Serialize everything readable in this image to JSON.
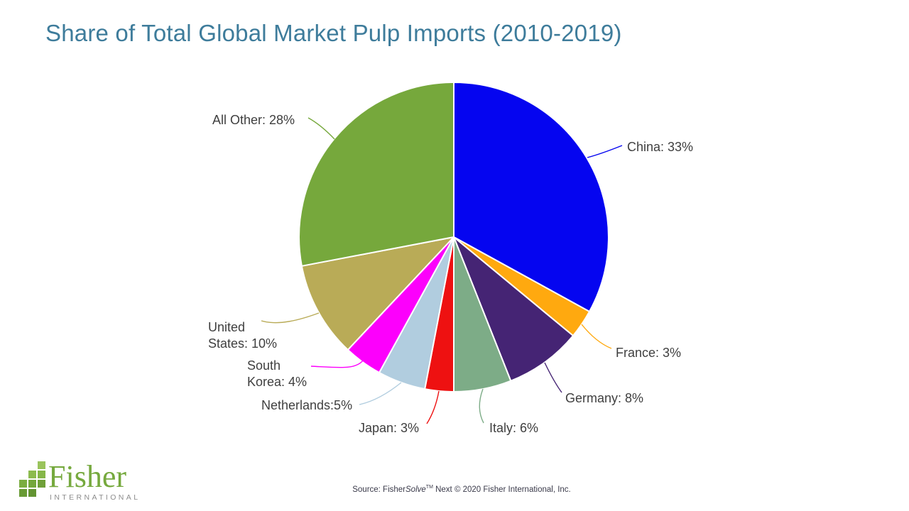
{
  "title": "Share of Total Global Market Pulp Imports (2010-2019)",
  "title_color": "#3E7C9B",
  "chart_data": {
    "type": "pie",
    "title": "Share of Total Global Market Pulp Imports (2010-2019)",
    "unit": "%",
    "direction": "clockwise",
    "start_angle_deg": 0,
    "label_color": "#3F3F3F",
    "slices": [
      {
        "name": "China",
        "value": 33,
        "color": "#0505F0",
        "label": "China: 33%"
      },
      {
        "name": "France",
        "value": 3,
        "color": "#FFA90F",
        "label": "France: 3%"
      },
      {
        "name": "Germany",
        "value": 8,
        "color": "#452474",
        "label": "Germany: 8%"
      },
      {
        "name": "Italy",
        "value": 6,
        "color": "#7DAC87",
        "label": "Italy: 6%"
      },
      {
        "name": "Japan",
        "value": 3,
        "color": "#EE1111",
        "label": "Japan: 3%"
      },
      {
        "name": "Netherlands",
        "value": 5,
        "color": "#B1CDDF",
        "label": "Netherlands:5%"
      },
      {
        "name": "South Korea",
        "value": 4,
        "color": "#FC00FC",
        "label": "South\nKorea: 4%"
      },
      {
        "name": "United States",
        "value": 10,
        "color": "#B9AB57",
        "label": "United\nStates: 10%"
      },
      {
        "name": "All Other",
        "value": 28,
        "color": "#76A83C",
        "label": "All Other: 28%"
      }
    ]
  },
  "footer": {
    "source_prefix": "Source: Fisher",
    "source_italic": "Solve",
    "source_tm": "TM",
    "source_suffix": " Next © 2020 Fisher International, Inc."
  },
  "logo": {
    "name": "Fisher",
    "subtitle": "INTERNATIONAL",
    "name_color": "#76A93E",
    "subtitle_color": "#8C8C8C"
  }
}
